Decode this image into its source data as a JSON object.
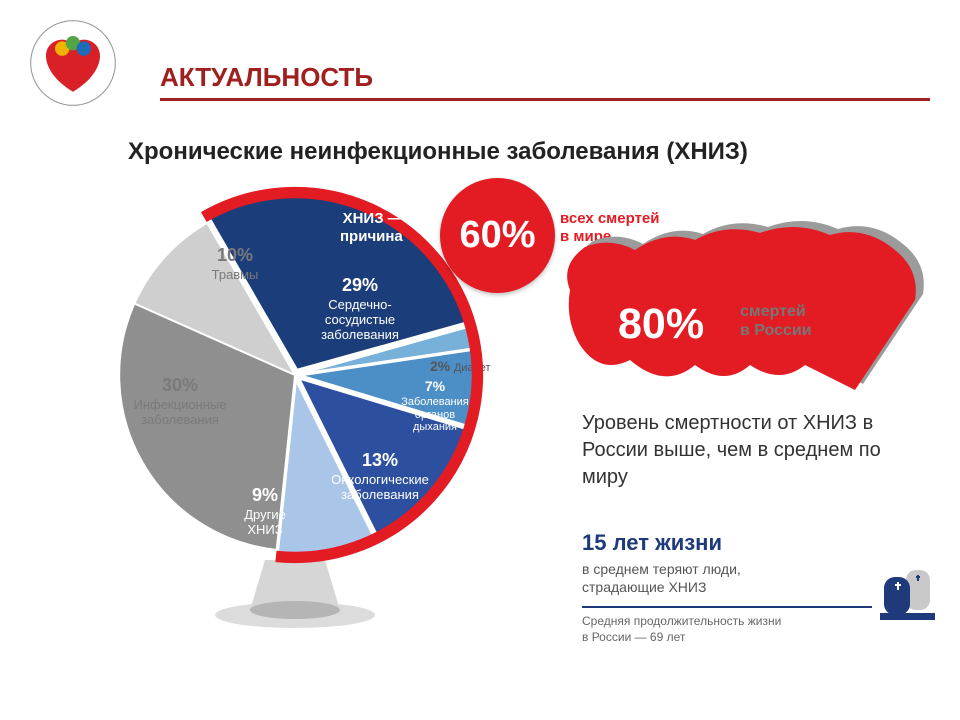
{
  "header": {
    "title": "АКТУАЛЬНОСТЬ",
    "title_color": "#a01f1f"
  },
  "subtitle": "Хронические неинфекционные заболевания (ХНИЗ)",
  "pie": {
    "type": "pie",
    "slices": [
      {
        "id": "cvd",
        "pct": 29,
        "pct_label": "29%",
        "label": "Сердечно-\nсосудистые\nзаболевания",
        "color": "#1b3d7a"
      },
      {
        "id": "diabetes",
        "pct": 2,
        "pct_label": "2%",
        "label": "Диабет",
        "color": "#77b1d9"
      },
      {
        "id": "respiratory",
        "pct": 7,
        "pct_label": "7%",
        "label": "Заболевания\nорганов\nдыхания",
        "color": "#4c8ec6"
      },
      {
        "id": "oncology",
        "pct": 13,
        "pct_label": "13%",
        "label": "Онкологические\nзаболевания",
        "color": "#2d4fa0"
      },
      {
        "id": "other_ncd",
        "pct": 9,
        "pct_label": "9%",
        "label": "Другие\nХНИЗ",
        "color": "#a9c5e8"
      },
      {
        "id": "infectious",
        "pct": 30,
        "pct_label": "30%",
        "label": "Инфекционные\nзаболевания",
        "color": "#8f8f8f"
      },
      {
        "id": "trauma",
        "pct": 10,
        "pct_label": "10%",
        "label": "Травмы",
        "color": "#cfcfcf"
      }
    ],
    "arc_color": "#e31b23",
    "arc_width": 10,
    "start_angle_deg": -30,
    "ncd_span_deg": 216
  },
  "badge": {
    "percent": "60%",
    "cause_label": "ХНИЗ —\nпричина",
    "world_deaths": "всех смертей\nв мире",
    "color": "#e31b23"
  },
  "russia": {
    "percent": "80%",
    "label": "смертей\nв России",
    "map_fill": "#e31b23",
    "map_shadow": "#9b9b9b",
    "text": "Уровень смертности от ХНИЗ в России выше, чем в среднем по миру"
  },
  "loss": {
    "title": "15 лет жизни",
    "sub": "в среднем теряют люди,\nстрадающие ХНИЗ",
    "footer": "Средняя продолжительность жизни\nв России — 69 лет",
    "color": "#1e3a7a"
  }
}
